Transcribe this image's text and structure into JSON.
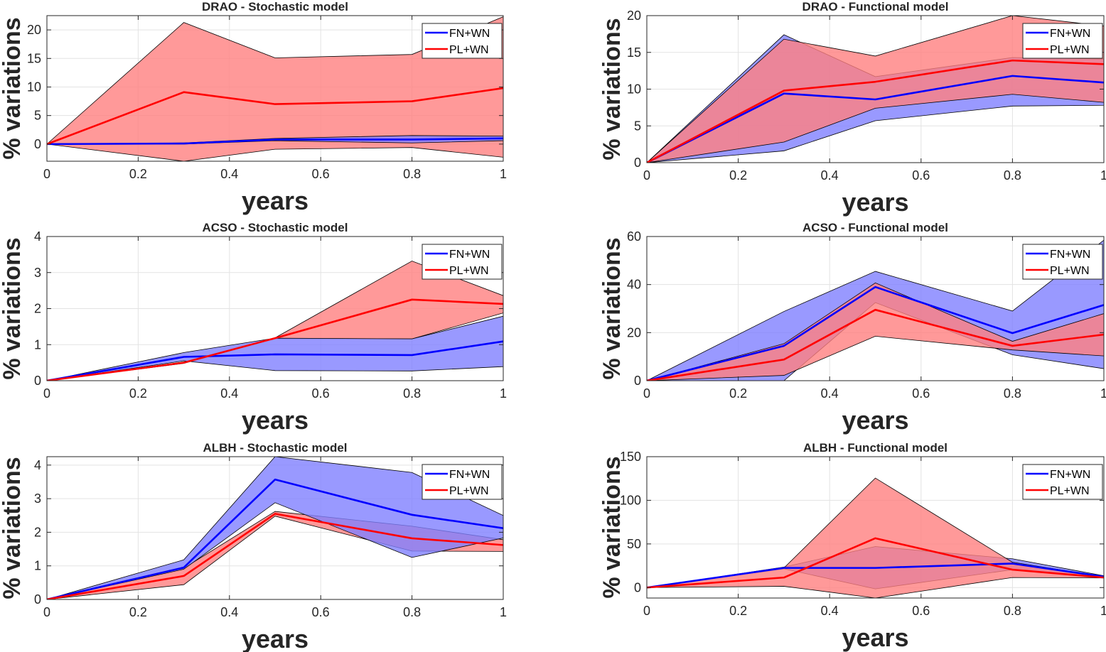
{
  "figure": {
    "series_names": [
      "FN+WN",
      "PL+WN"
    ],
    "colors": {
      "FN+WN": "#0000ff",
      "PL+WN": "#ff0000",
      "band_FN+WN": "#8080ff",
      "band_PL+WN": "#ff8080"
    },
    "band_opacity": 0.8
  },
  "chart_data": [
    {
      "type": "line",
      "title": "DRAO - Stochastic model",
      "xlabel": "years",
      "ylabel": "% variations",
      "x": [
        0,
        0.3,
        0.5,
        0.8,
        1
      ],
      "xlim": [
        0,
        1
      ],
      "ylim": [
        -3,
        22.5
      ],
      "xticks": [
        0,
        0.2,
        0.4,
        0.6,
        0.8,
        1
      ],
      "xticklabels": [
        "0",
        "0.2",
        "0.4",
        "0.6",
        "0.8",
        "1"
      ],
      "yticks": [
        0,
        5,
        10,
        15,
        20
      ],
      "yticklabels": [
        "0",
        "5",
        "10",
        "15",
        "20"
      ],
      "grid": true,
      "legend": "top-right",
      "series": [
        {
          "name": "FN+WN",
          "values": [
            0,
            0.1,
            0.8,
            0.8,
            1.0
          ],
          "lower": [
            0,
            0,
            0.6,
            0.2,
            0.6
          ],
          "upper": [
            0,
            0.2,
            1.0,
            1.5,
            1.4
          ]
        },
        {
          "name": "PL+WN",
          "values": [
            0,
            9.1,
            7.0,
            7.5,
            9.8
          ],
          "lower": [
            0,
            -3.0,
            -0.9,
            -0.6,
            -2.3
          ],
          "upper": [
            0,
            21.3,
            15.1,
            15.7,
            22.3
          ]
        }
      ]
    },
    {
      "type": "line",
      "title": "DRAO - Functional model",
      "xlabel": "years",
      "ylabel": "% variations",
      "x": [
        0,
        0.3,
        0.5,
        0.8,
        1
      ],
      "xlim": [
        0,
        1
      ],
      "ylim": [
        0,
        20
      ],
      "xticks": [
        0,
        0.2,
        0.4,
        0.6,
        0.8,
        1
      ],
      "xticklabels": [
        "0",
        "0.2",
        "0.4",
        "0.6",
        "0.8",
        "1"
      ],
      "yticks": [
        0,
        5,
        10,
        15,
        20
      ],
      "yticklabels": [
        "0",
        "5",
        "10",
        "15",
        "20"
      ],
      "grid": true,
      "legend": "top-right",
      "series": [
        {
          "name": "FN+WN",
          "values": [
            0,
            9.4,
            8.6,
            11.8,
            10.9
          ],
          "lower": [
            0,
            1.6,
            5.7,
            7.7,
            7.8
          ],
          "upper": [
            0,
            17.4,
            11.7,
            14.3,
            14.1
          ]
        },
        {
          "name": "PL+WN",
          "values": [
            0,
            9.8,
            11.0,
            13.9,
            13.4
          ],
          "lower": [
            0,
            2.8,
            7.4,
            9.3,
            8.2
          ],
          "upper": [
            0,
            16.8,
            14.5,
            20.0,
            18.6
          ]
        }
      ]
    },
    {
      "type": "line",
      "title": "ACSO - Stochastic model",
      "xlabel": "years",
      "ylabel": "% variations",
      "x": [
        0,
        0.3,
        0.5,
        0.8,
        1
      ],
      "xlim": [
        0,
        1
      ],
      "ylim": [
        0,
        4
      ],
      "xticks": [
        0,
        0.2,
        0.4,
        0.6,
        0.8,
        1
      ],
      "xticklabels": [
        "0",
        "0.2",
        "0.4",
        "0.6",
        "0.8",
        "1"
      ],
      "yticks": [
        0,
        1,
        2,
        3,
        4
      ],
      "yticklabels": [
        "0",
        "1",
        "2",
        "3",
        "4"
      ],
      "grid": true,
      "legend": "top-right",
      "series": [
        {
          "name": "FN+WN",
          "values": [
            0,
            0.66,
            0.73,
            0.71,
            1.09
          ],
          "lower": [
            0,
            0.55,
            0.28,
            0.27,
            0.39
          ],
          "upper": [
            0,
            0.78,
            1.18,
            1.16,
            1.79
          ]
        },
        {
          "name": "PL+WN",
          "values": [
            0,
            0.5,
            1.18,
            2.25,
            2.13
          ],
          "lower": [
            0,
            0.48,
            1.17,
            1.16,
            1.88
          ],
          "upper": [
            0,
            0.52,
            1.19,
            3.32,
            2.36
          ]
        }
      ]
    },
    {
      "type": "line",
      "title": "ACSO - Functional model",
      "xlabel": "years",
      "ylabel": "% variations",
      "x": [
        0,
        0.3,
        0.5,
        0.8,
        1
      ],
      "xlim": [
        0,
        1
      ],
      "ylim": [
        0,
        60
      ],
      "xticks": [
        0,
        0.2,
        0.4,
        0.6,
        0.8,
        1
      ],
      "xticklabels": [
        "0",
        "0.2",
        "0.4",
        "0.6",
        "0.8",
        "1"
      ],
      "yticks": [
        0,
        20,
        40,
        60
      ],
      "yticklabels": [
        "0",
        "20",
        "40",
        "60"
      ],
      "grid": true,
      "legend": "top-right",
      "series": [
        {
          "name": "FN+WN",
          "values": [
            0,
            14.5,
            39,
            19.8,
            31.5
          ],
          "lower": [
            0,
            0,
            32.5,
            10.8,
            5.0
          ],
          "upper": [
            0,
            28.8,
            45.5,
            29.0,
            58.5
          ]
        },
        {
          "name": "PL+WN",
          "values": [
            0,
            8.8,
            29.5,
            14.5,
            19.2
          ],
          "lower": [
            0,
            2.2,
            18.5,
            12.8,
            10.3
          ],
          "upper": [
            0,
            15.4,
            40.7,
            16.4,
            27.9
          ]
        }
      ]
    },
    {
      "type": "line",
      "title": "ALBH - Stochastic model",
      "xlabel": "years",
      "ylabel": "% variations",
      "x": [
        0,
        0.3,
        0.5,
        0.8,
        1
      ],
      "xlim": [
        0,
        1
      ],
      "ylim": [
        0,
        4.25
      ],
      "xticks": [
        0,
        0.2,
        0.4,
        0.6,
        0.8,
        1
      ],
      "xticklabels": [
        "0",
        "0.2",
        "0.4",
        "0.6",
        "0.8",
        "1"
      ],
      "yticks": [
        0,
        1,
        2,
        3,
        4
      ],
      "yticklabels": [
        "0",
        "1",
        "2",
        "3",
        "4"
      ],
      "grid": true,
      "legend": "top-right",
      "series": [
        {
          "name": "FN+WN",
          "values": [
            0,
            0.95,
            3.57,
            2.52,
            2.12
          ],
          "lower": [
            0,
            0.9,
            2.88,
            1.25,
            1.83
          ],
          "upper": [
            0,
            1.18,
            4.25,
            3.78,
            2.5
          ]
        },
        {
          "name": "PL+WN",
          "values": [
            0,
            0.7,
            2.55,
            1.82,
            1.62
          ],
          "lower": [
            0,
            0.44,
            2.48,
            1.44,
            1.43
          ],
          "upper": [
            0,
            0.93,
            2.62,
            2.18,
            1.78
          ]
        }
      ]
    },
    {
      "type": "line",
      "title": "ALBH - Functional model",
      "xlabel": "years",
      "ylabel": "% variations",
      "x": [
        0,
        0.3,
        0.5,
        0.8,
        1
      ],
      "xlim": [
        0,
        1
      ],
      "ylim": [
        -12,
        150
      ],
      "xticks": [
        0,
        0.2,
        0.4,
        0.6,
        0.8,
        1
      ],
      "xticklabels": [
        "0",
        "0.2",
        "0.4",
        "0.6",
        "0.8",
        "1"
      ],
      "yticks": [
        0,
        50,
        100,
        150
      ],
      "yticklabels": [
        "0",
        "50",
        "100",
        "150"
      ],
      "grid": true,
      "legend": "top-right",
      "series": [
        {
          "name": "FN+WN",
          "values": [
            0,
            22.5,
            22.5,
            27.5,
            12.5
          ],
          "lower": [
            0,
            21.5,
            -1.5,
            20.5,
            11.0
          ],
          "upper": [
            0,
            23.5,
            47.0,
            33.0,
            13.5
          ]
        },
        {
          "name": "PL+WN",
          "values": [
            0,
            11.5,
            56.5,
            20.5,
            11.5
          ],
          "lower": [
            0,
            1.5,
            -12.0,
            11.5,
            11.0
          ],
          "upper": [
            0,
            22.5,
            125.5,
            29.0,
            12.5
          ]
        }
      ]
    }
  ]
}
